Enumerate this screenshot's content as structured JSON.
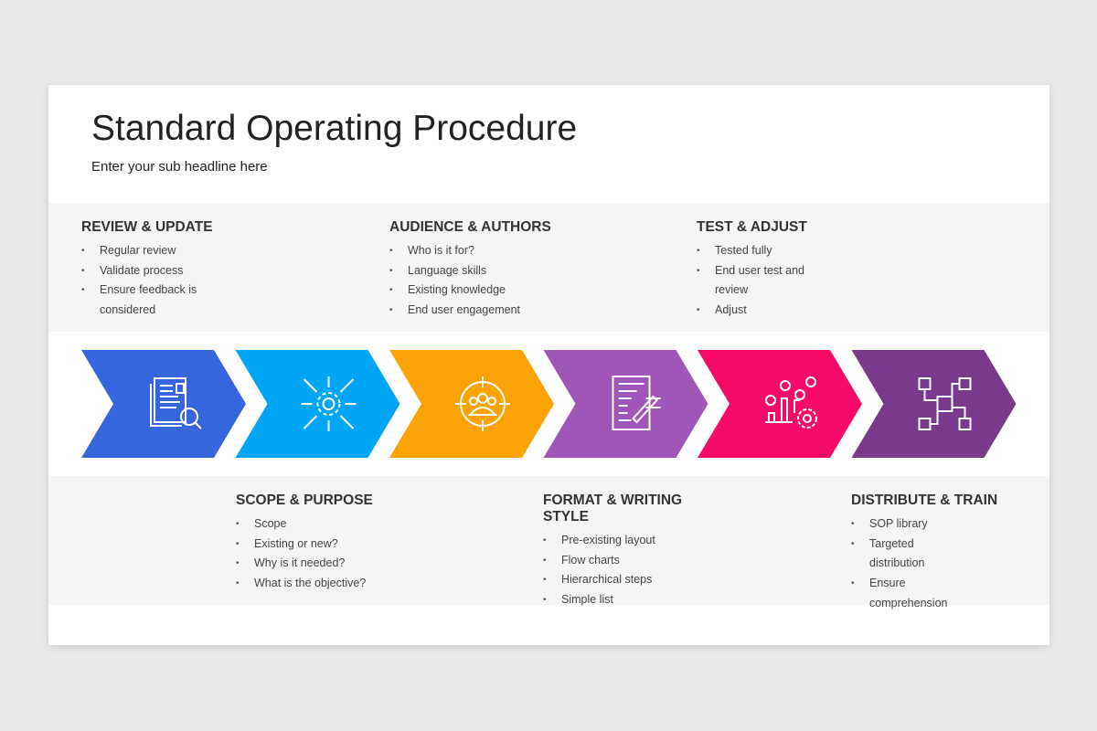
{
  "header": {
    "title": "Standard Operating Procedure",
    "subtitle": "Enter your sub headline here"
  },
  "steps": [
    {
      "title": "REVIEW & UPDATE",
      "items": [
        "Regular review",
        "Validate process",
        "Ensure feedback is considered"
      ],
      "color": "#3566DD",
      "icon": "document-search-icon"
    },
    {
      "title": "SCOPE & PURPOSE",
      "items": [
        "Scope",
        "Existing or new?",
        "Why is it needed?",
        "What is the objective?"
      ],
      "color": "#00A5F5",
      "icon": "gear-arrows-icon"
    },
    {
      "title": "AUDIENCE & AUTHORS",
      "items": [
        "Who is it for?",
        "Language skills",
        "Existing knowledge",
        "End user engagement"
      ],
      "color": "#FBA305",
      "icon": "target-group-icon"
    },
    {
      "title": "FORMAT & WRITING STYLE",
      "items": [
        "Pre-existing layout",
        "Flow charts",
        "Hierarchical steps",
        "Simple list"
      ],
      "color": "#A055B8",
      "icon": "document-writing-icon"
    },
    {
      "title": "TEST & ADJUST",
      "items": [
        "Tested fully",
        "End user test and review",
        "Adjust"
      ],
      "color": "#F50A6A",
      "icon": "chart-gear-icon"
    },
    {
      "title": "DISTRIBUTE & TRAIN",
      "items": [
        "SOP library",
        "Targeted distribution",
        "Ensure comprehension"
      ],
      "color": "#7A3A8C",
      "icon": "network-chip-icon"
    }
  ]
}
